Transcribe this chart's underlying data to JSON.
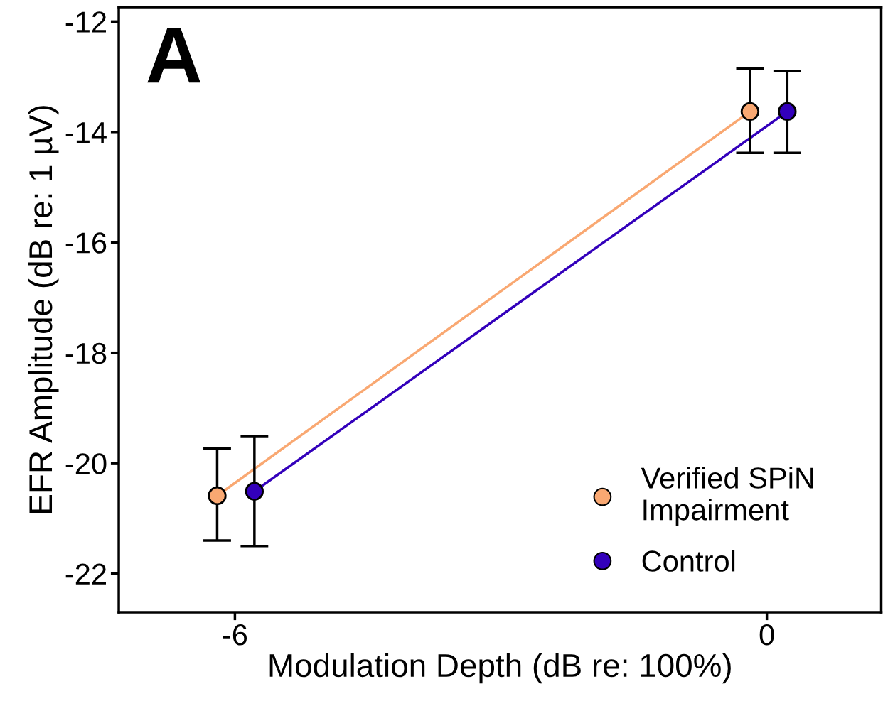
{
  "chart_data": {
    "type": "line",
    "xlabel": "Modulation Depth (dB re: 100%)",
    "ylabel": "EFR Amplitude (dB re: 1 µV)",
    "annotations": [
      "A"
    ],
    "xlim": [
      -7.31,
      1.29
    ],
    "xticks": [
      -6,
      0
    ],
    "ylim": [
      -22.7,
      -11.74
    ],
    "yticks": [
      -22,
      -20,
      -18,
      -16,
      -14,
      -12
    ],
    "marker": "circle",
    "legend": "bottom right",
    "grid": false,
    "series": [
      {
        "name": "Verified SPiN\nImpairment",
        "color": "#f9a872",
        "x": [
          -6.2,
          -0.19
        ],
        "values": [
          -20.59,
          -13.63
        ],
        "errors": [
          [
            -21.4,
            -19.73
          ],
          [
            -14.38,
            -12.85
          ]
        ]
      },
      {
        "name": "Control",
        "color": "#3300bb",
        "x": [
          -5.78,
          0.23
        ],
        "values": [
          -20.51,
          -13.63
        ],
        "errors": [
          [
            -21.5,
            -19.51
          ],
          [
            -14.38,
            -12.9
          ]
        ]
      }
    ]
  }
}
